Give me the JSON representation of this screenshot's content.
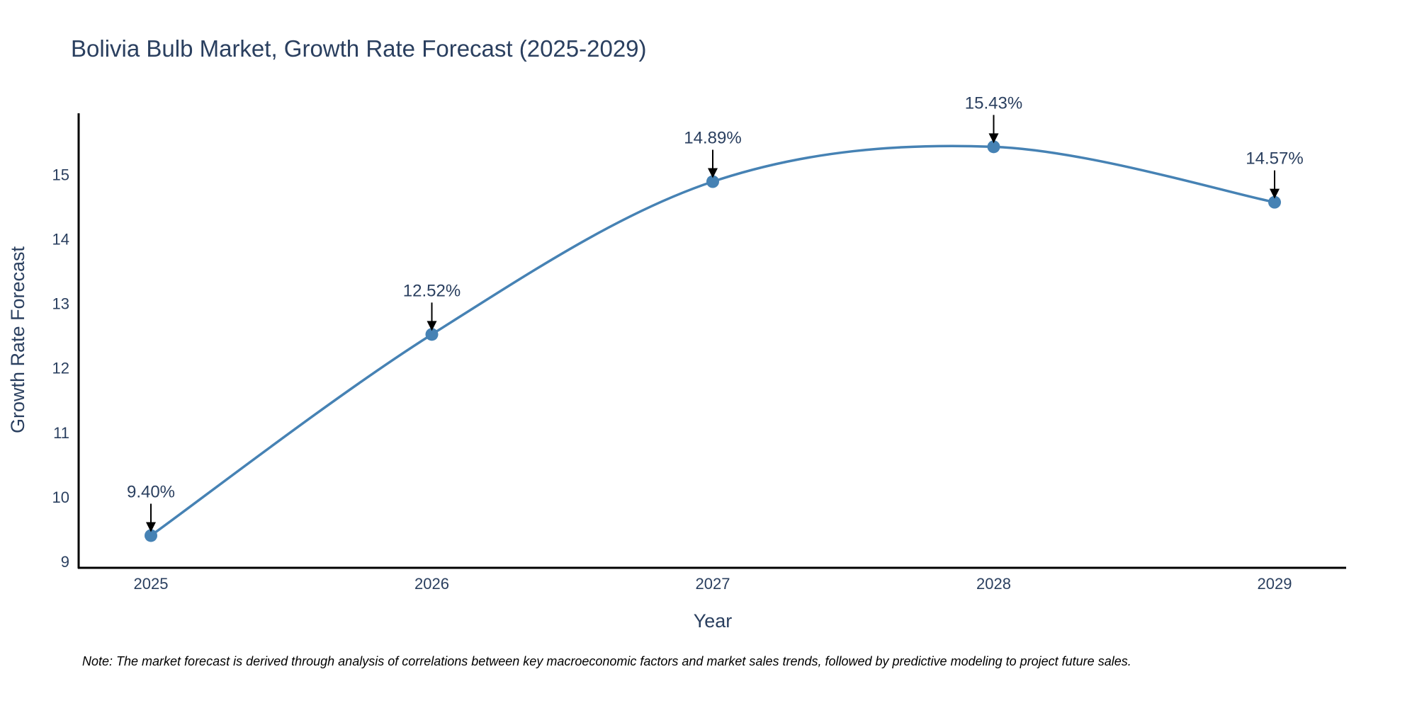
{
  "chart_data": {
    "type": "line",
    "title": "Bolivia Bulb Market, Growth Rate Forecast (2025-2029)",
    "xlabel": "Year",
    "ylabel": "Growth Rate Forecast",
    "categories": [
      "2025",
      "2026",
      "2027",
      "2028",
      "2029"
    ],
    "values": [
      9.4,
      12.52,
      14.89,
      15.43,
      14.57
    ],
    "labels": [
      "9.40%",
      "12.52%",
      "14.89%",
      "15.43%",
      "14.57%"
    ],
    "y_ticks": [
      9,
      10,
      11,
      12,
      13,
      14,
      15
    ],
    "ylim": [
      8.9,
      15.95
    ],
    "grid": false,
    "line_color": "#4682b4",
    "marker_color": "#4682b4",
    "arrow_color": "#000000",
    "note": "Note: The market forecast is derived through analysis of correlations between key macroeconomic factors and market sales trends, followed by predictive modeling to project future sales."
  }
}
